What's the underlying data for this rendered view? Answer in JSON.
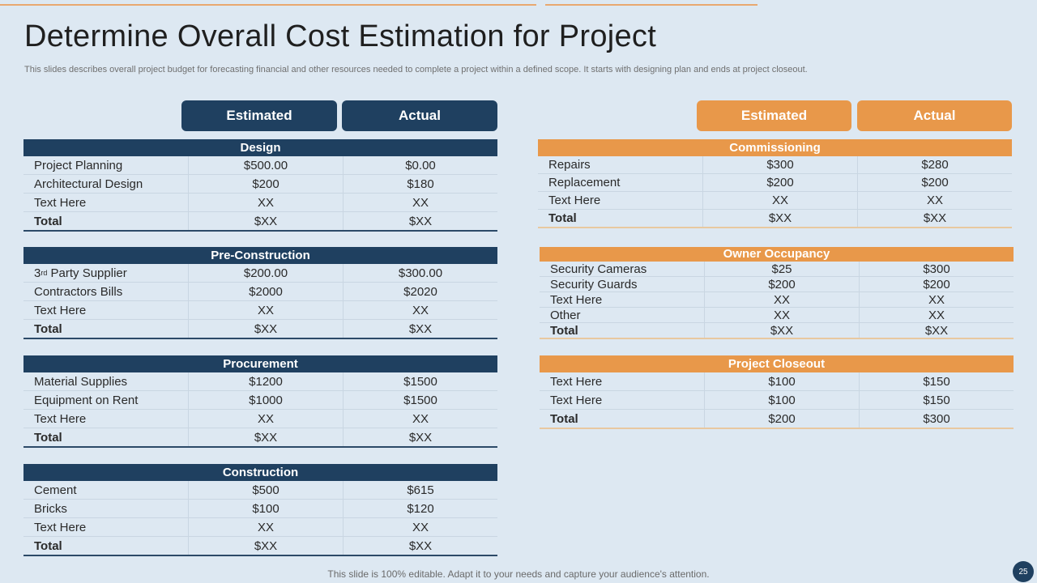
{
  "title": "Determine Overall Cost Estimation  for Project",
  "subtitle": "This slides describes overall project budget for forecasting financial and other resources needed to complete a project within a defined scope. It starts with designing plan and ends at project closeout.",
  "left_headers": {
    "estimated": "Estimated",
    "actual": "Actual"
  },
  "right_headers": {
    "estimated": "Estimated",
    "actual": "Actual"
  },
  "colors": {
    "navy": "#1f4060",
    "orange": "#e8984a",
    "background": "#dde8f2"
  },
  "left_tables": [
    {
      "title": "Design",
      "rows": [
        {
          "label": "Project Planning",
          "estimated": "$500.00",
          "actual": "$0.00"
        },
        {
          "label": "Architectural Design",
          "estimated": "$200",
          "actual": "$180"
        },
        {
          "label": "Text Here",
          "estimated": "XX",
          "actual": "XX"
        },
        {
          "label": "Total",
          "estimated": "$XX",
          "actual": "$XX"
        }
      ]
    },
    {
      "title": "Pre-Construction",
      "rows": [
        {
          "label": "3",
          "label_sup": "rd",
          "label_rest": " Party Supplier",
          "estimated": "$200.00",
          "actual": "$300.00"
        },
        {
          "label": "Contractors Bills",
          "estimated": "$2000",
          "actual": "$2020"
        },
        {
          "label": "Text Here",
          "estimated": "XX",
          "actual": "XX"
        },
        {
          "label": "Total",
          "estimated": "$XX",
          "actual": "$XX"
        }
      ]
    },
    {
      "title": "Procurement",
      "rows": [
        {
          "label": "Material Supplies",
          "estimated": "$1200",
          "actual": "$1500"
        },
        {
          "label": "Equipment on Rent",
          "estimated": "$1000",
          "actual": "$1500"
        },
        {
          "label": "Text Here",
          "estimated": "XX",
          "actual": "XX"
        },
        {
          "label": "Total",
          "estimated": "$XX",
          "actual": "$XX"
        }
      ]
    },
    {
      "title": "Construction",
      "rows": [
        {
          "label": "Cement",
          "estimated": "$500",
          "actual": "$615"
        },
        {
          "label": "Bricks",
          "estimated": "$100",
          "actual": "$120"
        },
        {
          "label": "Text Here",
          "estimated": "XX",
          "actual": "XX"
        },
        {
          "label": "Total",
          "estimated": "$XX",
          "actual": "$XX"
        }
      ]
    }
  ],
  "right_tables": [
    {
      "title": "Commissioning",
      "rows": [
        {
          "label": "Repairs",
          "estimated": "$300",
          "actual": "$280"
        },
        {
          "label": "Replacement",
          "estimated": "$200",
          "actual": "$200"
        },
        {
          "label": "Text Here",
          "estimated": "XX",
          "actual": "XX"
        },
        {
          "label": "Total",
          "estimated": "$XX",
          "actual": "$XX"
        }
      ]
    },
    {
      "title": "Owner Occupancy",
      "rows": [
        {
          "label": "Security Cameras",
          "estimated": "$25",
          "actual": "$300"
        },
        {
          "label": "Security Guards",
          "estimated": "$200",
          "actual": "$200"
        },
        {
          "label": "Text Here",
          "estimated": "XX",
          "actual": "XX"
        },
        {
          "label": "Other",
          "estimated": "XX",
          "actual": "XX"
        },
        {
          "label": "Total",
          "estimated": "$XX",
          "actual": "$XX"
        }
      ]
    },
    {
      "title": "Project Closeout",
      "rows": [
        {
          "label": "Text Here",
          "estimated": "$100",
          "actual": "$150"
        },
        {
          "label": "Text Here",
          "estimated": "$100",
          "actual": "$150"
        },
        {
          "label": "Total",
          "estimated": "$200",
          "actual": "$300"
        }
      ]
    }
  ],
  "footer": "This slide is 100% editable. Adapt it to your needs and capture your audience's attention.",
  "page_number": "25"
}
